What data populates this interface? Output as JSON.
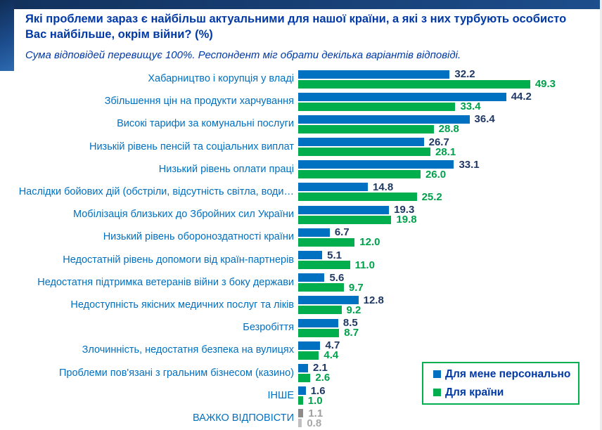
{
  "chart_data": {
    "type": "bar",
    "orientation": "horizontal",
    "title": "Які проблеми зараз є найбільш актуальними для нашої країни, а які з них турбують особисто Вас найбільше, окрім війни? (%)",
    "subtitle": "Сума відповідей перевищує 100%. Респондент міг обрати декілька варіантів відповіді.",
    "categories": [
      "Хабарництво і корупція у владі",
      "Збільшення цін на продукти харчування",
      "Високі тарифи за комунальні послуги",
      "Низькій рівень пенсій та соціальних виплат",
      "Низький рівень оплати праці",
      "Наслідки бойових дій (обстріли, відсутність світла, води…",
      "Мобілізація близьких до Збройних сил України",
      "Низький рівень обороноздатності країни",
      "Недостатній рівень допомоги від країн-партнерів",
      "Недостатня підтримка ветеранів війни з боку держави",
      "Недоступність якісних медичних послуг та ліків",
      "Безробіття",
      "Злочинність, недостатня безпека на вулицях",
      "Проблеми пов'язані з гральним бізнесом (казино)",
      "ІНШЕ",
      "ВАЖКО ВІДПОВІСТИ"
    ],
    "series": [
      {
        "name": "Для мене персонально",
        "color": "#0070c0",
        "value_color": "#1f3864",
        "values": [
          32.2,
          44.2,
          36.4,
          26.7,
          33.1,
          14.8,
          19.3,
          6.7,
          5.1,
          5.6,
          12.8,
          8.5,
          4.7,
          2.1,
          1.6,
          1.1
        ]
      },
      {
        "name": "Для країни",
        "color": "#00ae4d",
        "value_color": "#00a14b",
        "values": [
          49.3,
          33.4,
          28.8,
          28.1,
          26.0,
          25.2,
          19.8,
          12.0,
          11.0,
          9.7,
          9.2,
          8.7,
          4.4,
          2.6,
          1.0,
          0.8
        ]
      }
    ],
    "row_overrides": {
      "15": {
        "bar_colors": [
          "#8c8c8c",
          "#c0c0c0"
        ],
        "value_colors": [
          "#9e9e9e",
          "#a9a9a9"
        ]
      }
    },
    "xlim": [
      0,
      52
    ],
    "grid": false,
    "axes_visible": false,
    "value_labels": true,
    "legend_position": "bottom-right",
    "accent_colors": {
      "title_text": "#0039a6",
      "category_label_text": "#0070c0",
      "legend_border": "#00b050",
      "top_band": "#1d4d8c"
    }
  }
}
